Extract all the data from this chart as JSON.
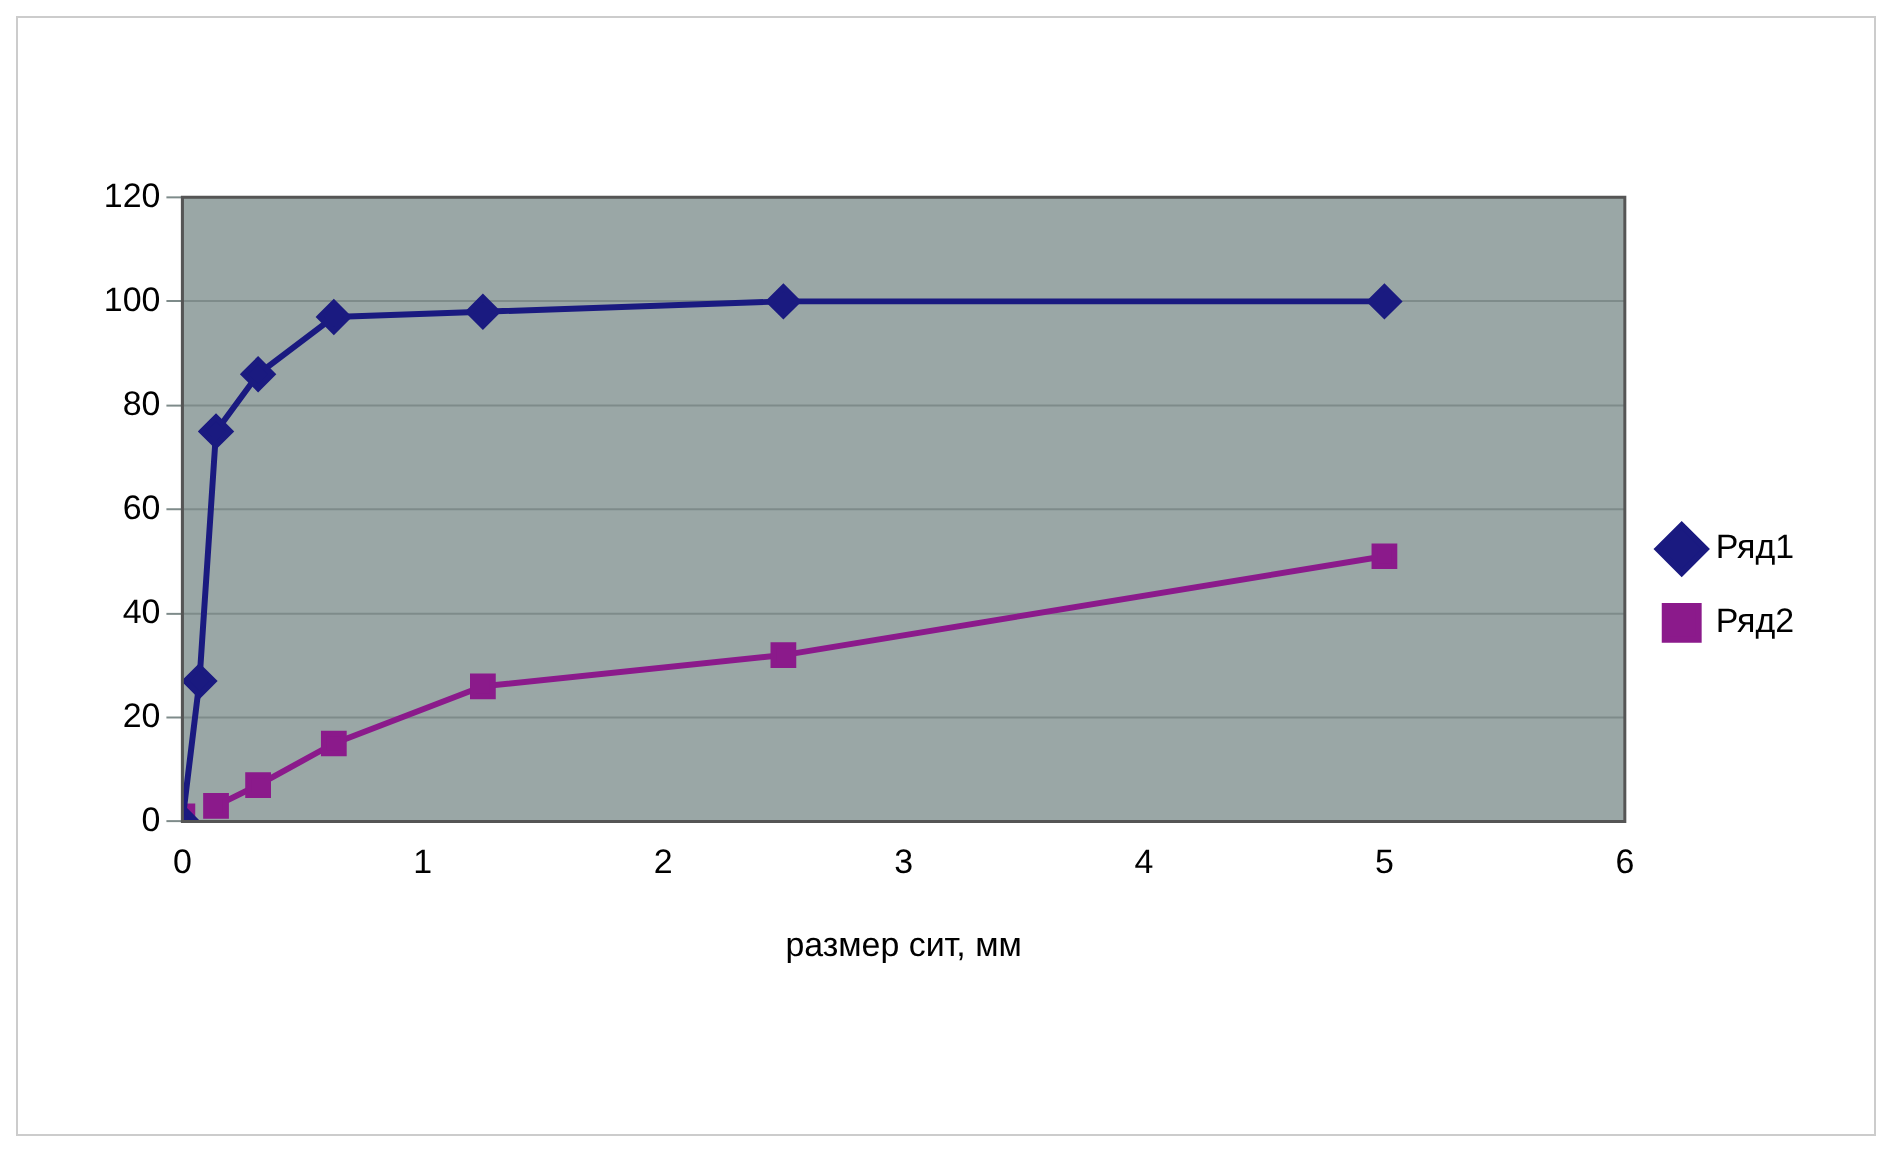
{
  "chart_data": {
    "type": "line",
    "xlabel": "размер сит, мм",
    "x": [
      0,
      0.071,
      0.14,
      0.315,
      0.63,
      1.25,
      2.5,
      5
    ],
    "series": [
      {
        "name": "Ряд1",
        "color": "#1a1a80",
        "marker": "diamond",
        "values": [
          0,
          27,
          75,
          86,
          97,
          98,
          100,
          100
        ]
      },
      {
        "name": "Ряд2",
        "color": "#8b1a8b",
        "marker": "square",
        "values": [
          1,
          null,
          3,
          7,
          15,
          26,
          32,
          51
        ]
      }
    ],
    "xlim": [
      0,
      6
    ],
    "xticks": [
      0,
      1,
      2,
      3,
      4,
      5,
      6
    ],
    "ylim": [
      0,
      120
    ],
    "yticks": [
      0,
      20,
      40,
      60,
      80,
      100,
      120
    ],
    "grid": "y",
    "legend": "right",
    "line_style": "solid"
  }
}
